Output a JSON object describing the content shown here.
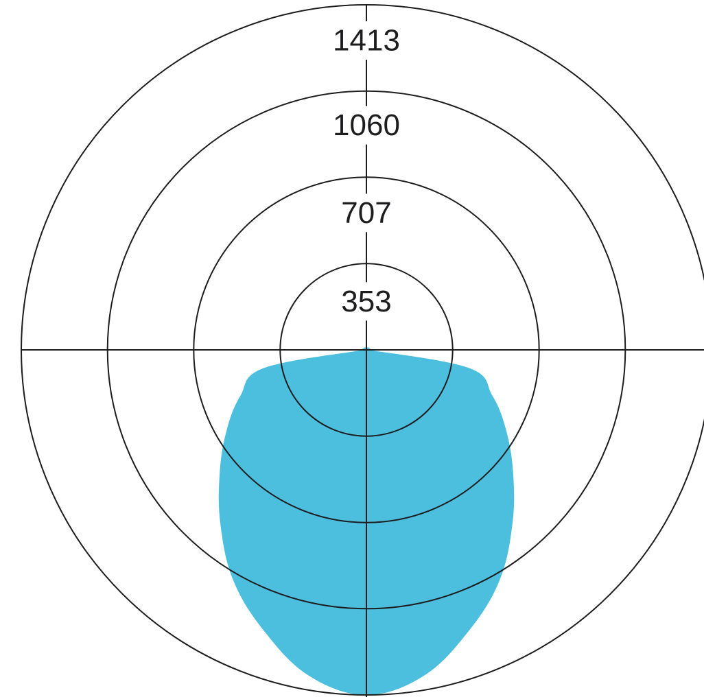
{
  "chart_data": {
    "type": "polar-area",
    "title": "",
    "radial_axis": {
      "ticks": [
        353,
        707,
        1060,
        1413
      ],
      "tick_labels": [
        "353",
        "707",
        "1060",
        "1413"
      ],
      "range": [
        0,
        1413
      ]
    },
    "angular_axis": {
      "zero_direction": "down",
      "unit": "degrees"
    },
    "series": [
      {
        "fill": "#4bbfdd",
        "points": [
          {
            "angle": 0,
            "r": 1413
          },
          {
            "angle": 10,
            "r": 1355
          },
          {
            "angle": 20,
            "r": 1225
          },
          {
            "angle": 30,
            "r": 1090
          },
          {
            "angle": 40,
            "r": 930
          },
          {
            "angle": 50,
            "r": 784
          },
          {
            "angle": 60,
            "r": 661
          },
          {
            "angle": 70,
            "r": 549
          },
          {
            "angle": 80,
            "r": 425
          },
          {
            "angle": 90,
            "r": 8
          },
          {
            "angle": -90,
            "r": 8
          },
          {
            "angle": -80,
            "r": 425
          },
          {
            "angle": -70,
            "r": 549
          },
          {
            "angle": -60,
            "r": 661
          },
          {
            "angle": -50,
            "r": 784
          },
          {
            "angle": -40,
            "r": 930
          },
          {
            "angle": -30,
            "r": 1090
          },
          {
            "angle": -20,
            "r": 1225
          },
          {
            "angle": -10,
            "r": 1355
          }
        ]
      }
    ],
    "grid": true,
    "legend": "none",
    "colors": {
      "fill": "#4bbfdd",
      "lines": "#1d1d1f"
    }
  }
}
